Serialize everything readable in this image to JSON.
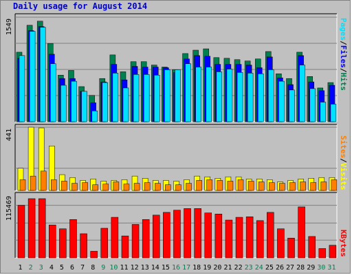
{
  "title": "Daily usage for August 2014",
  "colors": {
    "hits": "#00804f",
    "files": "#0000ff",
    "pages": "#00e0ff",
    "visits": "#ffff00",
    "sites": "#ff8000",
    "kbytes": "#ff0000",
    "weekend_day": "#00804f",
    "weekday": "#000000"
  },
  "chart_data": [
    {
      "type": "bar",
      "panel": "hits-files-pages",
      "y_max_label": "1549",
      "ylim": [
        0,
        1549
      ],
      "legend": {
        "pages": "Pages",
        "files": "Files",
        "hits": "Hits",
        "sep": "/"
      },
      "categories": [
        "1",
        "2",
        "3",
        "4",
        "5",
        "6",
        "7",
        "8",
        "9",
        "10",
        "11",
        "12",
        "13",
        "14",
        "15",
        "16",
        "17",
        "18",
        "19",
        "20",
        "21",
        "22",
        "23",
        "24",
        "25",
        "26",
        "27",
        "28",
        "29",
        "30",
        "31"
      ],
      "series": [
        {
          "name": "Hits",
          "values": [
            1030,
            1430,
            1490,
            1160,
            690,
            760,
            520,
            390,
            640,
            990,
            740,
            890,
            890,
            840,
            810,
            770,
            1010,
            1060,
            1080,
            950,
            940,
            920,
            900,
            930,
            1040,
            710,
            640,
            1030,
            670,
            500,
            580
          ]
        },
        {
          "name": "Files",
          "values": [
            940,
            1350,
            1410,
            1000,
            640,
            640,
            450,
            280,
            590,
            850,
            620,
            820,
            810,
            810,
            800,
            730,
            930,
            980,
            970,
            850,
            850,
            850,
            840,
            800,
            960,
            650,
            550,
            980,
            590,
            460,
            540
          ]
        },
        {
          "name": "Pages",
          "values": [
            980,
            1340,
            1400,
            860,
            540,
            600,
            450,
            160,
            580,
            720,
            500,
            700,
            700,
            690,
            770,
            770,
            860,
            810,
            810,
            740,
            780,
            730,
            720,
            710,
            770,
            600,
            470,
            840,
            490,
            290,
            260
          ]
        }
      ]
    },
    {
      "type": "bar",
      "panel": "visits-sites",
      "y_max_label": "441",
      "ylim": [
        0,
        441
      ],
      "legend": {
        "sites": "Sites",
        "visits": "Visits",
        "sep": "/"
      },
      "categories": [
        "1",
        "2",
        "3",
        "4",
        "5",
        "6",
        "7",
        "8",
        "9",
        "10",
        "11",
        "12",
        "13",
        "14",
        "15",
        "16",
        "17",
        "18",
        "19",
        "20",
        "21",
        "22",
        "23",
        "24",
        "25",
        "26",
        "27",
        "28",
        "29",
        "30",
        "31"
      ],
      "series": [
        {
          "name": "Visits",
          "values": [
            155,
            441,
            436,
            310,
            110,
            90,
            70,
            80,
            65,
            70,
            75,
            100,
            85,
            70,
            70,
            65,
            75,
            100,
            95,
            85,
            95,
            95,
            80,
            80,
            75,
            60,
            70,
            80,
            85,
            90,
            90
          ]
        },
        {
          "name": "Sites",
          "values": [
            75,
            100,
            135,
            75,
            65,
            50,
            55,
            40,
            45,
            60,
            45,
            50,
            55,
            50,
            40,
            40,
            50,
            70,
            75,
            70,
            65,
            75,
            65,
            60,
            55,
            50,
            55,
            60,
            55,
            60,
            75
          ]
        }
      ]
    },
    {
      "type": "bar",
      "panel": "kbytes",
      "y_max_label": "115469",
      "ylim": [
        0,
        115469
      ],
      "legend": {
        "kbytes": "KBytes"
      },
      "categories": [
        "1",
        "2",
        "3",
        "4",
        "5",
        "6",
        "7",
        "8",
        "9",
        "10",
        "11",
        "12",
        "13",
        "14",
        "15",
        "16",
        "17",
        "18",
        "19",
        "20",
        "21",
        "22",
        "23",
        "24",
        "25",
        "26",
        "27",
        "28",
        "29",
        "30",
        "31"
      ],
      "series": [
        {
          "name": "KBytes",
          "values": [
            96000,
            108000,
            108000,
            60000,
            53000,
            70000,
            44000,
            12000,
            54000,
            74000,
            40000,
            61000,
            70000,
            78000,
            83000,
            87000,
            90000,
            90000,
            82000,
            80000,
            69000,
            74000,
            75000,
            68000,
            83000,
            53000,
            36000,
            93000,
            39000,
            17000,
            23000
          ]
        }
      ]
    }
  ]
}
